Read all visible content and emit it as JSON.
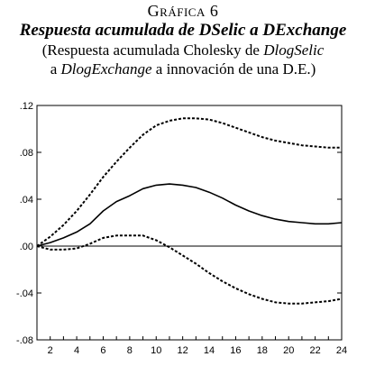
{
  "header": {
    "figure_number": "Gráfica 6",
    "title": "Respuesta acumulada de DSelic a DExchange",
    "subtitle_line1_prefix": "(Respuesta acumulada Cholesky de ",
    "subtitle_line1_var": "DlogSelic",
    "subtitle_line2_prefix": "a ",
    "subtitle_line2_var": "DlogExchange",
    "subtitle_line2_suffix": " a innovación de una D.E.)"
  },
  "chart_data": {
    "type": "line",
    "title": "Respuesta acumulada de DSelic a DExchange",
    "xlabel": "",
    "ylabel": "",
    "xlim": [
      1,
      24
    ],
    "ylim": [
      -0.08,
      0.12
    ],
    "x_ticks": [
      2,
      4,
      6,
      8,
      10,
      12,
      14,
      16,
      18,
      20,
      22,
      24
    ],
    "y_ticks": [
      {
        "value": 0.12,
        "label": ".12"
      },
      {
        "value": 0.08,
        "label": ".08"
      },
      {
        "value": 0.04,
        "label": ".04"
      },
      {
        "value": 0.0,
        "label": ".00"
      },
      {
        "value": -0.04,
        "label": "-.04"
      },
      {
        "value": -0.08,
        "label": "-.08"
      }
    ],
    "grid": false,
    "zero_line": true,
    "x": [
      1,
      2,
      3,
      4,
      5,
      6,
      7,
      8,
      9,
      10,
      11,
      12,
      13,
      14,
      15,
      16,
      17,
      18,
      19,
      20,
      21,
      22,
      23,
      24
    ],
    "series": [
      {
        "role": "upper band",
        "style": "dashed",
        "values": [
          0.0,
          0.008,
          0.018,
          0.03,
          0.044,
          0.059,
          0.072,
          0.084,
          0.095,
          0.103,
          0.107,
          0.109,
          0.109,
          0.108,
          0.105,
          0.101,
          0.097,
          0.093,
          0.09,
          0.088,
          0.086,
          0.085,
          0.084,
          0.084
        ]
      },
      {
        "role": "response",
        "style": "solid",
        "values": [
          0.0,
          0.003,
          0.007,
          0.012,
          0.019,
          0.03,
          0.038,
          0.043,
          0.049,
          0.052,
          0.053,
          0.052,
          0.05,
          0.046,
          0.041,
          0.035,
          0.03,
          0.026,
          0.023,
          0.021,
          0.02,
          0.019,
          0.019,
          0.02
        ]
      },
      {
        "role": "lower band",
        "style": "dashed",
        "values": [
          0.0,
          -0.003,
          -0.003,
          -0.002,
          0.002,
          0.007,
          0.009,
          0.009,
          0.009,
          0.005,
          -0.001,
          -0.008,
          -0.015,
          -0.023,
          -0.03,
          -0.036,
          -0.041,
          -0.045,
          -0.048,
          -0.049,
          -0.049,
          -0.048,
          -0.047,
          -0.045
        ]
      }
    ]
  }
}
